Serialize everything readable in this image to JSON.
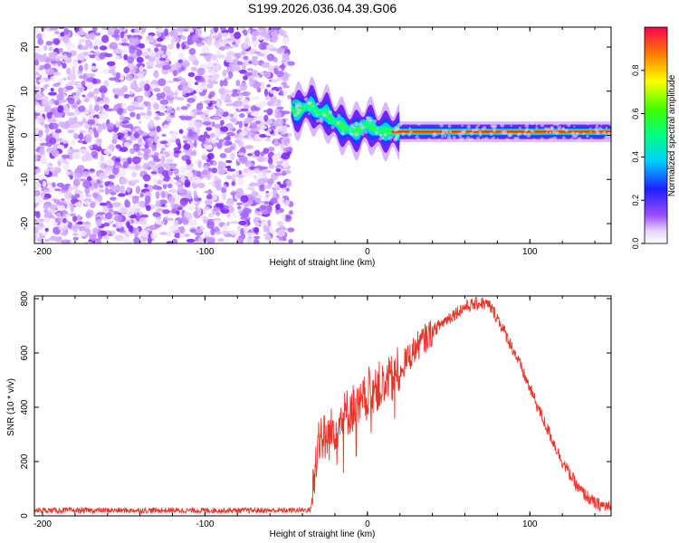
{
  "title": "S199.2026.036.04.39.G06",
  "chart_data": [
    {
      "type": "heatmap",
      "title": "S199.2026.036.04.39.G06",
      "xlabel": "Height of straight line (km)",
      "ylabel": "Frequency (Hz)",
      "xlim": [
        -205,
        150
      ],
      "ylim": [
        -24.5,
        24.5
      ],
      "xticks": [
        -200,
        -100,
        0,
        100
      ],
      "yticks": [
        -20,
        -10,
        0,
        10,
        20
      ],
      "noise_region_km": [
        -205,
        -47
      ],
      "signal_track": {
        "x": [
          -47,
          -45,
          -40,
          -35,
          -30,
          -25,
          -20,
          -15,
          -10,
          -5,
          0,
          3,
          6,
          10,
          15,
          20,
          50,
          80,
          100,
          120,
          150
        ],
        "freq": [
          6.5,
          5,
          6,
          7,
          5,
          5,
          3,
          2,
          1,
          1,
          2.5,
          2,
          1,
          0.8,
          0.8,
          0.8,
          0.8,
          0.8,
          0.8,
          0.8,
          0.8
        ]
      },
      "colorbar": {
        "label": "Normalized spectral amplitude",
        "range": [
          0.0,
          1.0
        ],
        "ticks": [
          "0.0",
          "0.2",
          "0.4",
          "0.6",
          "0.8"
        ]
      }
    },
    {
      "type": "line",
      "xlabel": "Height of straight line (km)",
      "ylabel": "SNR (10 * v/v)",
      "xlim": [
        -205,
        150
      ],
      "ylim": [
        0,
        810
      ],
      "xticks": [
        -200,
        -100,
        0,
        100
      ],
      "yticks": [
        0,
        200,
        400,
        600,
        800
      ],
      "series": [
        {
          "name": "SNR",
          "color": "#e8352b",
          "x": [
            -205,
            -150,
            -100,
            -50,
            -35,
            -33,
            -30,
            -25,
            -20,
            -15,
            -10,
            -5,
            0,
            5,
            10,
            15,
            20,
            30,
            40,
            50,
            60,
            70,
            75,
            80,
            90,
            100,
            110,
            120,
            130,
            140,
            150
          ],
          "y": [
            20,
            20,
            20,
            20,
            22,
            120,
            300,
            280,
            330,
            360,
            400,
            390,
            450,
            480,
            470,
            500,
            540,
            620,
            680,
            730,
            770,
            785,
            775,
            730,
            610,
            470,
            330,
            200,
            100,
            45,
            30
          ]
        }
      ]
    }
  ]
}
